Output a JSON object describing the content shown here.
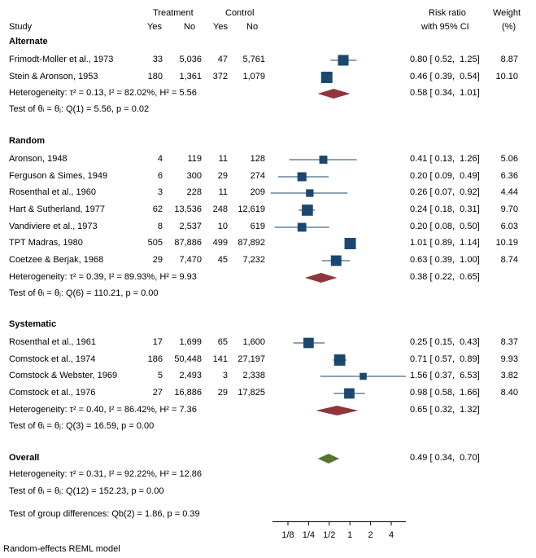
{
  "header": {
    "study": "Study",
    "treatment": "Treatment",
    "control": "Control",
    "yes1": "Yes",
    "no1": "No",
    "yes2": "Yes",
    "no2": "No",
    "rr": "Risk ratio",
    "ci": "with 95% CI",
    "weight": "Weight",
    "weight_unit": "(%)"
  },
  "footer": {
    "model": "Random-effects REML model"
  },
  "chart_data": {
    "type": "forest",
    "x_scale": "log2",
    "x_ticks": [
      {
        "label": "1/8",
        "value": 0.125
      },
      {
        "label": "1/4",
        "value": 0.25
      },
      {
        "label": "1/2",
        "value": 0.5
      },
      {
        "label": "1",
        "value": 1
      },
      {
        "label": "2",
        "value": 2
      },
      {
        "label": "4",
        "value": 4
      }
    ],
    "x_range": [
      0.08,
      5.2
    ],
    "groups": [
      {
        "name": "Alternate",
        "studies": [
          {
            "study": "Frimodt-Moller et al., 1973",
            "t_yes": "33",
            "t_no": "5,036",
            "c_yes": "47",
            "c_no": "5,761",
            "rr": 0.8,
            "lo": 0.52,
            "hi": 1.25,
            "rr_text": "0.80 [ 0.52,  1.25]",
            "weight": "8.87"
          },
          {
            "study": "Stein & Aronson, 1953",
            "t_yes": "180",
            "t_no": "1,361",
            "c_yes": "372",
            "c_no": "1,079",
            "rr": 0.46,
            "lo": 0.39,
            "hi": 0.54,
            "rr_text": "0.46 [ 0.39,  0.54]",
            "weight": "10.10"
          }
        ],
        "summary": {
          "rr": 0.58,
          "lo": 0.34,
          "hi": 1.01,
          "rr_text": "0.58 [ 0.34,  1.01]"
        },
        "heterogeneity": "Heterogeneity: τ² = 0.13, I² = 82.02%, H² = 5.56",
        "test": "Test of θᵢ = θⱼ: Q(1) = 5.56, p = 0.02"
      },
      {
        "name": "Random",
        "studies": [
          {
            "study": "Aronson, 1948",
            "t_yes": "4",
            "t_no": "119",
            "c_yes": "11",
            "c_no": "128",
            "rr": 0.41,
            "lo": 0.13,
            "hi": 1.26,
            "rr_text": "0.41 [ 0.13,  1.26]",
            "weight": "5.06"
          },
          {
            "study": "Ferguson & Simes, 1949",
            "t_yes": "6",
            "t_no": "300",
            "c_yes": "29",
            "c_no": "274",
            "rr": 0.2,
            "lo": 0.09,
            "hi": 0.49,
            "rr_text": "0.20 [ 0.09,  0.49]",
            "weight": "6.36"
          },
          {
            "study": "Rosenthal et al., 1960",
            "t_yes": "3",
            "t_no": "228",
            "c_yes": "11",
            "c_no": "209",
            "rr": 0.26,
            "lo": 0.07,
            "hi": 0.92,
            "rr_text": "0.26 [ 0.07,  0.92]",
            "weight": "4.44"
          },
          {
            "study": "Hart & Sutherland, 1977",
            "t_yes": "62",
            "t_no": "13,536",
            "c_yes": "248",
            "c_no": "12,619",
            "rr": 0.24,
            "lo": 0.18,
            "hi": 0.31,
            "rr_text": "0.24 [ 0.18,  0.31]",
            "weight": "9.70"
          },
          {
            "study": "Vandiviere et al., 1973",
            "t_yes": "8",
            "t_no": "2,537",
            "c_yes": "10",
            "c_no": "619",
            "rr": 0.2,
            "lo": 0.08,
            "hi": 0.5,
            "rr_text": "0.20 [ 0.08,  0.50]",
            "weight": "6.03"
          },
          {
            "study": "TPT Madras, 1980",
            "t_yes": "505",
            "t_no": "87,886",
            "c_yes": "499",
            "c_no": "87,892",
            "rr": 1.01,
            "lo": 0.89,
            "hi": 1.14,
            "rr_text": "1.01 [ 0.89,  1.14]",
            "weight": "10.19"
          },
          {
            "study": "Coetzee & Berjak, 1968",
            "t_yes": "29",
            "t_no": "7,470",
            "c_yes": "45",
            "c_no": "7,232",
            "rr": 0.63,
            "lo": 0.39,
            "hi": 1.0,
            "rr_text": "0.63 [ 0.39,  1.00]",
            "weight": "8.74"
          }
        ],
        "summary": {
          "rr": 0.38,
          "lo": 0.22,
          "hi": 0.65,
          "rr_text": "0.38 [ 0.22,  0.65]"
        },
        "heterogeneity": "Heterogeneity: τ² = 0.39, I² = 89.93%, H² = 9.93",
        "test": "Test of θᵢ = θⱼ: Q(6) = 110.21, p = 0.00"
      },
      {
        "name": "Systematic",
        "studies": [
          {
            "study": "Rosenthal et al., 1961",
            "t_yes": "17",
            "t_no": "1,699",
            "c_yes": "65",
            "c_no": "1,600",
            "rr": 0.25,
            "lo": 0.15,
            "hi": 0.43,
            "rr_text": "0.25 [ 0.15,  0.43]",
            "weight": "8.37"
          },
          {
            "study": "Comstock et al., 1974",
            "t_yes": "186",
            "t_no": "50,448",
            "c_yes": "141",
            "c_no": "27,197",
            "rr": 0.71,
            "lo": 0.57,
            "hi": 0.89,
            "rr_text": "0.71 [ 0.57,  0.89]",
            "weight": "9.93"
          },
          {
            "study": "Comstock & Webster, 1969",
            "t_yes": "5",
            "t_no": "2,493",
            "c_yes": "3",
            "c_no": "2,338",
            "rr": 1.56,
            "lo": 0.37,
            "hi": 6.53,
            "rr_text": "1.56 [ 0.37,  6.53]",
            "weight": "3.82"
          },
          {
            "study": "Comstock et al., 1976",
            "t_yes": "27",
            "t_no": "16,886",
            "c_yes": "29",
            "c_no": "17,825",
            "rr": 0.98,
            "lo": 0.58,
            "hi": 1.66,
            "rr_text": "0.98 [ 0.58,  1.66]",
            "weight": "8.40"
          }
        ],
        "summary": {
          "rr": 0.65,
          "lo": 0.32,
          "hi": 1.32,
          "rr_text": "0.65 [ 0.32,  1.32]"
        },
        "heterogeneity": "Heterogeneity: τ² = 0.40, I² = 86.42%, H² = 7.36",
        "test": "Test of θᵢ = θⱼ: Q(3) = 16.59, p = 0.00"
      }
    ],
    "overall": {
      "name": "Overall",
      "rr": 0.49,
      "lo": 0.34,
      "hi": 0.7,
      "rr_text": "0.49 [ 0.34,  0.70]",
      "heterogeneity": "Heterogeneity: τ² = 0.31, I² = 92.22%, H² = 12.86",
      "test": "Test of θᵢ = θⱼ: Q(12) = 152.23, p = 0.00"
    },
    "group_test": "Test of group differences: Qb(2) = 1.86, p = 0.39",
    "colors": {
      "study_marker": "#1a476f",
      "group_diamond": "#90353b",
      "overall_diamond": "#55752f",
      "ci_line": "#1a476f"
    }
  }
}
